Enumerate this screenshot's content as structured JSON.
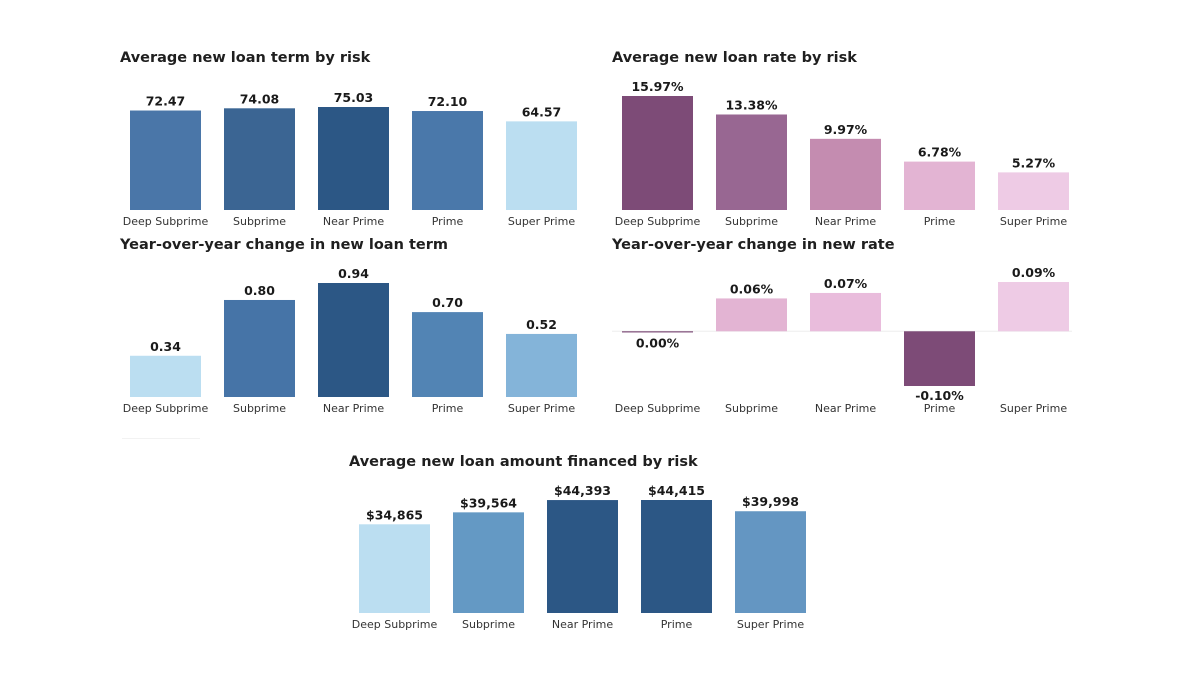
{
  "chart_data": [
    {
      "type": "bar",
      "title": "Average new loan term by risk",
      "categories": [
        "Deep Subprime",
        "Subprime",
        "Near Prime",
        "Prime",
        "Super Prime"
      ],
      "values": [
        72.47,
        74.08,
        75.03,
        72.1,
        64.57
      ],
      "labels": [
        "72.47",
        "74.08",
        "75.03",
        "72.10",
        "64.57"
      ],
      "colors": [
        "#4a76a8",
        "#3b6593",
        "#2c5785",
        "#4a78aa",
        "#bbdef1"
      ],
      "ylim": [
        0,
        75.03
      ]
    },
    {
      "type": "bar",
      "title": "Average new loan rate by risk",
      "categories": [
        "Deep Subprime",
        "Subprime",
        "Near Prime",
        "Prime",
        "Super Prime"
      ],
      "values": [
        15.97,
        13.38,
        9.97,
        6.78,
        5.27
      ],
      "labels": [
        "15.97%",
        "13.38%",
        "9.97%",
        "6.78%",
        "5.27%"
      ],
      "colors": [
        "#7d4b77",
        "#986792",
        "#c48cb0",
        "#e3b4d3",
        "#eecbe5"
      ],
      "ylim": [
        0,
        15.97
      ]
    },
    {
      "type": "bar",
      "title": "Year-over-year change in new loan term",
      "categories": [
        "Deep Subprime",
        "Subprime",
        "Near Prime",
        "Prime",
        "Super Prime"
      ],
      "values": [
        0.34,
        0.8,
        0.94,
        0.7,
        0.52
      ],
      "labels": [
        "0.34",
        "0.80",
        "0.94",
        "0.70",
        "0.52"
      ],
      "colors": [
        "#bbdef1",
        "#4674a7",
        "#2c5785",
        "#5284b4",
        "#84b4d9"
      ],
      "ylim": [
        0,
        0.94
      ]
    },
    {
      "type": "bar",
      "title": "Year-over-year change in new rate",
      "categories": [
        "Deep Subprime",
        "Subprime",
        "Near Prime",
        "Prime",
        "Super Prime"
      ],
      "values": [
        0.0,
        0.06,
        0.07,
        -0.1,
        0.09
      ],
      "labels": [
        "0.00%",
        "0.06%",
        "0.07%",
        "-0.10%",
        "0.09%"
      ],
      "colors": [
        "#7d4b77",
        "#e3b4d3",
        "#e9bcdc",
        "#7d4b77",
        "#eecbe5"
      ],
      "ylim": [
        -0.1,
        0.09
      ]
    },
    {
      "type": "bar",
      "title": "Average new loan amount financed by risk",
      "categories": [
        "Deep Subprime",
        "Subprime",
        "Near Prime",
        "Prime",
        "Super Prime"
      ],
      "values": [
        34865,
        39564,
        44393,
        44415,
        39998
      ],
      "labels": [
        "$34,865",
        "$39,564",
        "$44,393",
        "$44,415",
        "$39,998"
      ],
      "colors": [
        "#bbdef1",
        "#6499c4",
        "#2c5785",
        "#2c5785",
        "#6496c2"
      ],
      "ylim": [
        0,
        44415
      ]
    }
  ]
}
